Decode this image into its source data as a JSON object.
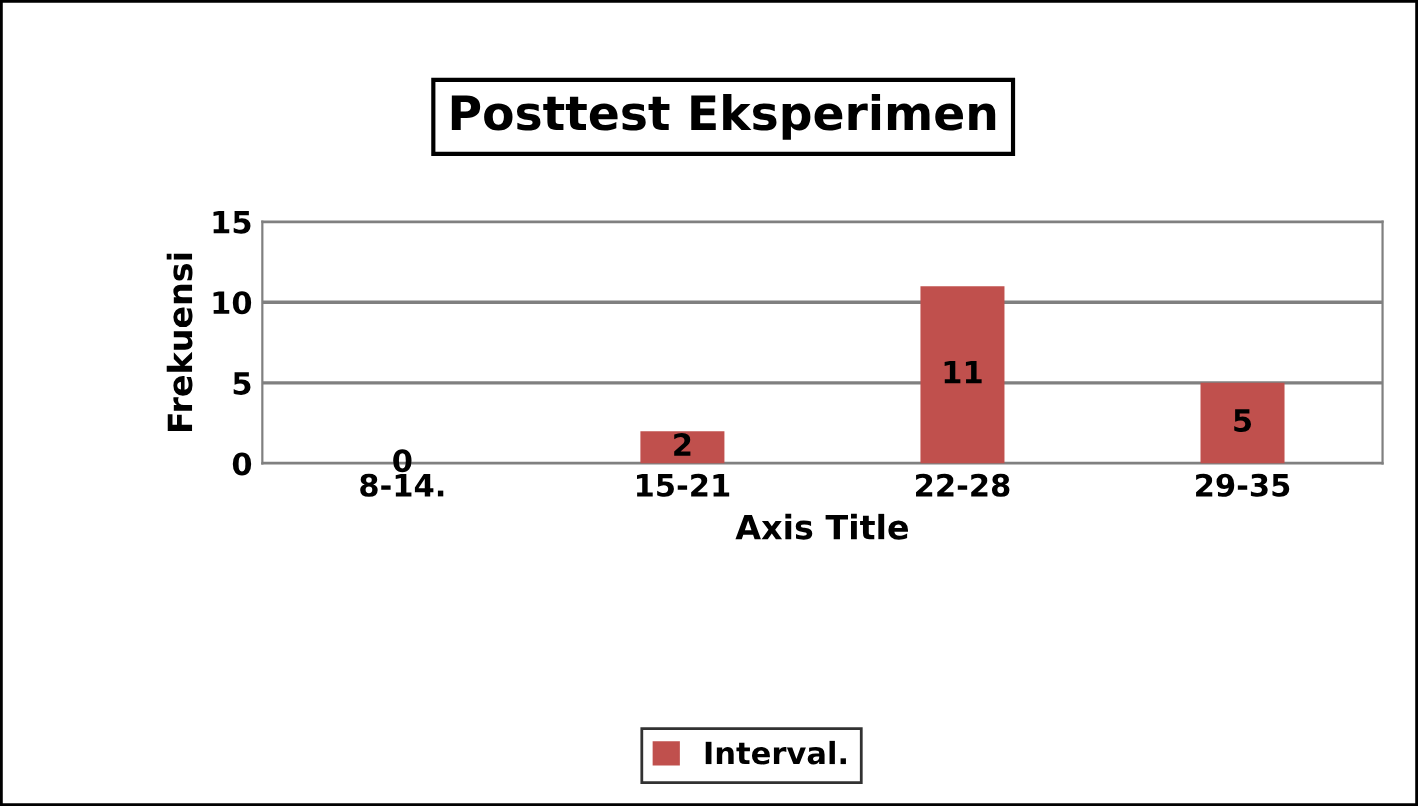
{
  "chart_data": {
    "type": "bar",
    "title": "Posttest Eksperimen",
    "xlabel": "Axis Title",
    "ylabel": "Frekuensi",
    "categories": [
      "8-14.",
      "15-21",
      "22-28",
      "29-35"
    ],
    "series": [
      {
        "name": "Interval.",
        "color": "#c0504d",
        "values": [
          0,
          2,
          11,
          5
        ]
      }
    ],
    "ylim": [
      0,
      15
    ],
    "yticks": [
      0,
      5,
      10,
      15
    ],
    "grid": "y",
    "legend": "bottom",
    "data_labels": true
  }
}
